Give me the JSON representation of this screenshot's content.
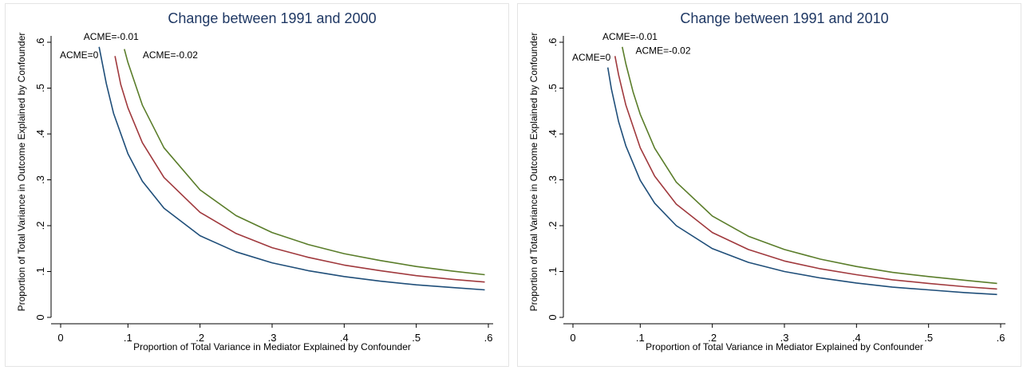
{
  "chart_data": [
    {
      "type": "line",
      "title": "Change between 1991 and 2000",
      "xlabel": "Proportion of Total Variance in Mediator Explained by Confounder",
      "ylabel": "Proportion of Total Variance in Outcome Explained by Confounder",
      "xlim": [
        0,
        0.6
      ],
      "ylim": [
        0,
        0.6
      ],
      "xticks": [
        "0",
        ".1",
        ".2",
        ".3",
        ".4",
        ".5",
        ".6"
      ],
      "yticks": [
        "0",
        ".1",
        ".2",
        ".3",
        ".4",
        ".5",
        ".6"
      ],
      "grid": false,
      "legend": "none",
      "series": [
        {
          "name": "ACME=0",
          "color": "#1f4e79",
          "x": [
            0.06,
            0.07,
            0.08,
            0.1,
            0.12,
            0.15,
            0.2,
            0.25,
            0.3,
            0.35,
            0.4,
            0.45,
            0.5,
            0.55,
            0.595
          ],
          "y": [
            0.59,
            0.51,
            0.445,
            0.357,
            0.297,
            0.238,
            0.178,
            0.143,
            0.119,
            0.102,
            0.089,
            0.079,
            0.071,
            0.065,
            0.06
          ]
        },
        {
          "name": "ACME=-0.01",
          "color": "#a0393d",
          "x": [
            0.082,
            0.09,
            0.1,
            0.12,
            0.15,
            0.2,
            0.25,
            0.3,
            0.35,
            0.4,
            0.45,
            0.5,
            0.55,
            0.595
          ],
          "y": [
            0.57,
            0.508,
            0.457,
            0.381,
            0.305,
            0.229,
            0.183,
            0.152,
            0.131,
            0.114,
            0.102,
            0.091,
            0.083,
            0.077
          ]
        },
        {
          "name": "ACME=-0.02",
          "color": "#5a7d2a",
          "x": [
            0.095,
            0.1,
            0.12,
            0.15,
            0.2,
            0.25,
            0.3,
            0.35,
            0.4,
            0.45,
            0.5,
            0.55,
            0.595
          ],
          "y": [
            0.585,
            0.556,
            0.463,
            0.37,
            0.278,
            0.222,
            0.185,
            0.159,
            0.139,
            0.124,
            0.111,
            0.101,
            0.093
          ]
        }
      ],
      "annotations": [
        {
          "text": "ACME=0",
          "x": 0.0,
          "y": 0.565
        },
        {
          "text": "ACME=-0.01",
          "x": 0.033,
          "y": 0.605
        },
        {
          "text": "ACME=-0.02",
          "x": 0.115,
          "y": 0.565
        }
      ]
    },
    {
      "type": "line",
      "title": "Change between 1991 and 2010",
      "xlabel": "Proportion of Total Variance in Mediator Explained by Confounder",
      "ylabel": "Proportion of Total Variance in Outcome Explained by Confounder",
      "xlim": [
        0,
        0.6
      ],
      "ylim": [
        0,
        0.6
      ],
      "xticks": [
        "0",
        ".1",
        ".2",
        ".3",
        ".4",
        ".5",
        ".6"
      ],
      "yticks": [
        "0",
        ".1",
        ".2",
        ".3",
        ".4",
        ".5",
        ".6"
      ],
      "grid": false,
      "legend": "none",
      "series": [
        {
          "name": "ACME=0",
          "color": "#1f4e79",
          "x": [
            0.055,
            0.06,
            0.07,
            0.08,
            0.1,
            0.12,
            0.15,
            0.2,
            0.25,
            0.3,
            0.35,
            0.4,
            0.45,
            0.5,
            0.55,
            0.595
          ],
          "y": [
            0.545,
            0.498,
            0.427,
            0.374,
            0.299,
            0.249,
            0.2,
            0.15,
            0.12,
            0.1,
            0.086,
            0.075,
            0.066,
            0.06,
            0.054,
            0.05
          ]
        },
        {
          "name": "ACME=-0.01",
          "color": "#a0393d",
          "x": [
            0.065,
            0.07,
            0.08,
            0.1,
            0.12,
            0.15,
            0.2,
            0.25,
            0.3,
            0.35,
            0.4,
            0.45,
            0.5,
            0.55,
            0.595
          ],
          "y": [
            0.57,
            0.529,
            0.463,
            0.37,
            0.308,
            0.247,
            0.185,
            0.148,
            0.123,
            0.106,
            0.093,
            0.082,
            0.074,
            0.067,
            0.062
          ]
        },
        {
          "name": "ACME=-0.02",
          "color": "#5a7d2a",
          "x": [
            0.075,
            0.08,
            0.09,
            0.1,
            0.12,
            0.15,
            0.2,
            0.25,
            0.3,
            0.35,
            0.4,
            0.45,
            0.5,
            0.55,
            0.595
          ],
          "y": [
            0.59,
            0.553,
            0.492,
            0.443,
            0.369,
            0.295,
            0.221,
            0.177,
            0.148,
            0.127,
            0.111,
            0.098,
            0.089,
            0.081,
            0.074
          ]
        }
      ],
      "annotations": [
        {
          "text": "ACME=0",
          "x": 0.0,
          "y": 0.56
        },
        {
          "text": "ACME=-0.01",
          "x": 0.042,
          "y": 0.605
        },
        {
          "text": "ACME=-0.02",
          "x": 0.088,
          "y": 0.575
        }
      ]
    }
  ]
}
